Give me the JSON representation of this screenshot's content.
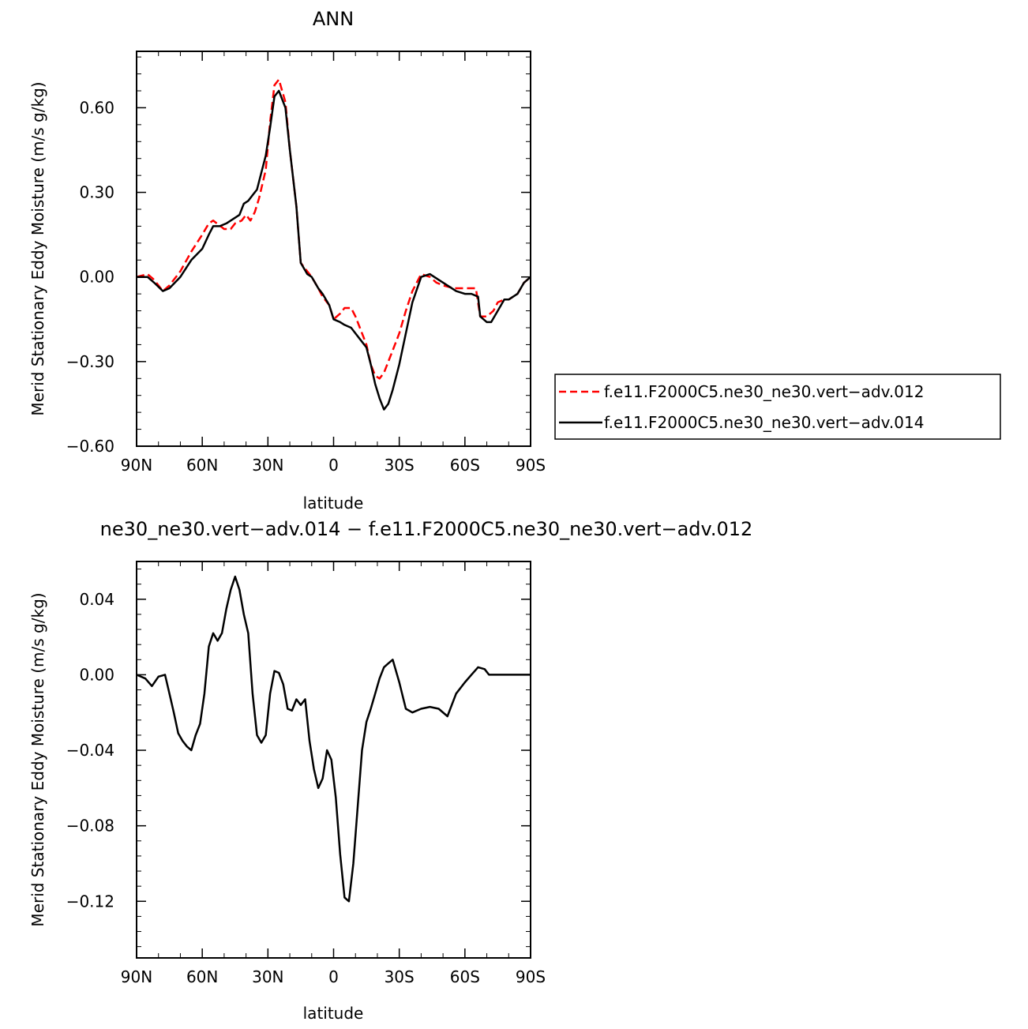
{
  "chart_data": [
    {
      "type": "line",
      "title": "ANN",
      "xlabel": "latitude",
      "ylabel": "Merid Stationary Eddy Moisture (m/s g/kg)",
      "xlim": [
        90,
        -90
      ],
      "ylim": [
        -0.6,
        0.8
      ],
      "x_ticks": [
        90,
        60,
        30,
        0,
        -30,
        -60,
        -90
      ],
      "x_tick_labels": [
        "90N",
        "60N",
        "30N",
        "0",
        "30S",
        "60S",
        "90S"
      ],
      "y_ticks": [
        -0.6,
        -0.3,
        0.0,
        0.3,
        0.6
      ],
      "y_tick_labels": [
        "−0.60",
        "−0.30",
        "0.00",
        "0.30",
        "0.60"
      ],
      "legend_position": "right",
      "series": [
        {
          "name": "f.e11.F2000C5.ne30_ne30.vert−adv.012",
          "color": "#ff0000",
          "dash": "dashed",
          "x": [
            90,
            85,
            82,
            78,
            75,
            70,
            65,
            60,
            57,
            55,
            50,
            47,
            45,
            42,
            40,
            38,
            36,
            34,
            31,
            29,
            27,
            25,
            22,
            20,
            17,
            15,
            12,
            10,
            7,
            5,
            2,
            0,
            -3,
            -5,
            -8,
            -10,
            -12,
            -15,
            -17,
            -19,
            -21,
            -23,
            -25,
            -27,
            -30,
            -33,
            -36,
            -40,
            -44,
            -47,
            -50,
            -55,
            -60,
            -65,
            -67,
            -70,
            -73,
            -75,
            -78,
            -80,
            -84,
            -87,
            -90
          ],
          "y": [
            0.0,
            0.01,
            -0.01,
            -0.05,
            -0.03,
            0.02,
            0.09,
            0.15,
            0.19,
            0.2,
            0.17,
            0.17,
            0.19,
            0.2,
            0.22,
            0.2,
            0.23,
            0.28,
            0.38,
            0.55,
            0.68,
            0.7,
            0.62,
            0.45,
            0.25,
            0.05,
            0.02,
            0.0,
            -0.04,
            -0.07,
            -0.1,
            -0.15,
            -0.13,
            -0.11,
            -0.11,
            -0.14,
            -0.18,
            -0.24,
            -0.31,
            -0.35,
            -0.36,
            -0.34,
            -0.3,
            -0.26,
            -0.2,
            -0.12,
            -0.05,
            0.01,
            0.0,
            -0.02,
            -0.03,
            -0.04,
            -0.04,
            -0.04,
            -0.14,
            -0.14,
            -0.12,
            -0.09,
            -0.08,
            -0.08,
            -0.06,
            -0.02,
            0.0
          ]
        },
        {
          "name": "f.e11.F2000C5.ne30_ne30.vert−adv.014",
          "color": "#000000",
          "dash": "solid",
          "x": [
            90,
            85,
            82,
            78,
            75,
            70,
            65,
            60,
            57,
            55,
            52,
            49,
            47,
            45,
            43,
            41,
            39,
            37,
            35,
            33,
            31,
            29,
            27,
            25,
            22,
            20,
            17,
            15,
            12,
            10,
            7,
            5,
            2,
            0,
            -3,
            -5,
            -8,
            -10,
            -12,
            -15,
            -17,
            -19,
            -21,
            -23,
            -25,
            -27,
            -30,
            -33,
            -36,
            -40,
            -44,
            -48,
            -52,
            -56,
            -60,
            -63,
            -66,
            -67,
            -70,
            -72,
            -75,
            -78,
            -80,
            -84,
            -87,
            -90
          ],
          "y": [
            0.0,
            0.0,
            -0.02,
            -0.05,
            -0.04,
            0.0,
            0.06,
            0.1,
            0.15,
            0.18,
            0.18,
            0.19,
            0.2,
            0.21,
            0.22,
            0.26,
            0.27,
            0.29,
            0.31,
            0.37,
            0.43,
            0.53,
            0.64,
            0.66,
            0.6,
            0.45,
            0.25,
            0.05,
            0.01,
            0.0,
            -0.04,
            -0.06,
            -0.1,
            -0.15,
            -0.16,
            -0.17,
            -0.18,
            -0.2,
            -0.22,
            -0.25,
            -0.31,
            -0.38,
            -0.43,
            -0.47,
            -0.45,
            -0.4,
            -0.31,
            -0.2,
            -0.09,
            0.0,
            0.01,
            -0.01,
            -0.03,
            -0.05,
            -0.06,
            -0.06,
            -0.07,
            -0.14,
            -0.16,
            -0.16,
            -0.12,
            -0.08,
            -0.08,
            -0.06,
            -0.02,
            0.0
          ]
        }
      ]
    },
    {
      "type": "line",
      "title": "ne30_ne30.vert−adv.014 − f.e11.F2000C5.ne30_ne30.vert−adv.012",
      "xlabel": "latitude",
      "ylabel": "Merid Stationary Eddy Moisture (m/s g/kg)",
      "xlim": [
        90,
        -90
      ],
      "ylim": [
        -0.15,
        0.06
      ],
      "x_ticks": [
        90,
        60,
        30,
        0,
        -30,
        -60,
        -90
      ],
      "x_tick_labels": [
        "90N",
        "60N",
        "30N",
        "0",
        "30S",
        "60S",
        "90S"
      ],
      "y_ticks": [
        -0.12,
        -0.08,
        -0.04,
        0.0,
        0.04
      ],
      "y_tick_labels": [
        "−0.12",
        "−0.08",
        "−0.04",
        "0.00",
        "0.04"
      ],
      "series": [
        {
          "color": "#000000",
          "dash": "solid",
          "x": [
            90,
            86,
            83,
            80,
            77,
            75,
            73,
            71,
            69,
            67,
            65,
            63,
            61,
            59,
            57,
            55,
            53,
            51,
            49,
            47,
            45,
            43,
            41,
            39,
            37,
            35,
            33,
            31,
            29,
            27,
            25,
            23,
            21,
            19,
            17,
            15,
            13,
            11,
            9,
            7,
            5,
            3,
            1,
            -1,
            -3,
            -5,
            -7,
            -9,
            -11,
            -13,
            -15,
            -17,
            -19,
            -21,
            -23,
            -25,
            -27,
            -30,
            -33,
            -36,
            -40,
            -44,
            -48,
            -52,
            -56,
            -60,
            -63,
            -66,
            -69,
            -71,
            -73,
            -75,
            -77,
            -80,
            -84,
            -87,
            -90
          ],
          "y": [
            0.0,
            -0.002,
            -0.006,
            -0.001,
            0.0,
            -0.01,
            -0.02,
            -0.031,
            -0.035,
            -0.038,
            -0.04,
            -0.032,
            -0.026,
            -0.01,
            0.015,
            0.022,
            0.018,
            0.022,
            0.035,
            0.045,
            0.052,
            0.045,
            0.032,
            0.022,
            -0.01,
            -0.032,
            -0.036,
            -0.032,
            -0.01,
            0.002,
            0.001,
            -0.005,
            -0.018,
            -0.019,
            -0.013,
            -0.016,
            -0.013,
            -0.035,
            -0.05,
            -0.06,
            -0.055,
            -0.04,
            -0.045,
            -0.065,
            -0.095,
            -0.118,
            -0.12,
            -0.1,
            -0.07,
            -0.04,
            -0.025,
            -0.018,
            -0.01,
            -0.002,
            0.004,
            0.006,
            0.008,
            -0.004,
            -0.018,
            -0.02,
            -0.018,
            -0.017,
            -0.018,
            -0.022,
            -0.01,
            -0.004,
            0.0,
            0.004,
            0.003,
            0.0,
            0.0,
            0.0,
            0.0,
            0.0,
            0.0,
            0.0,
            0.0
          ]
        }
      ]
    }
  ]
}
